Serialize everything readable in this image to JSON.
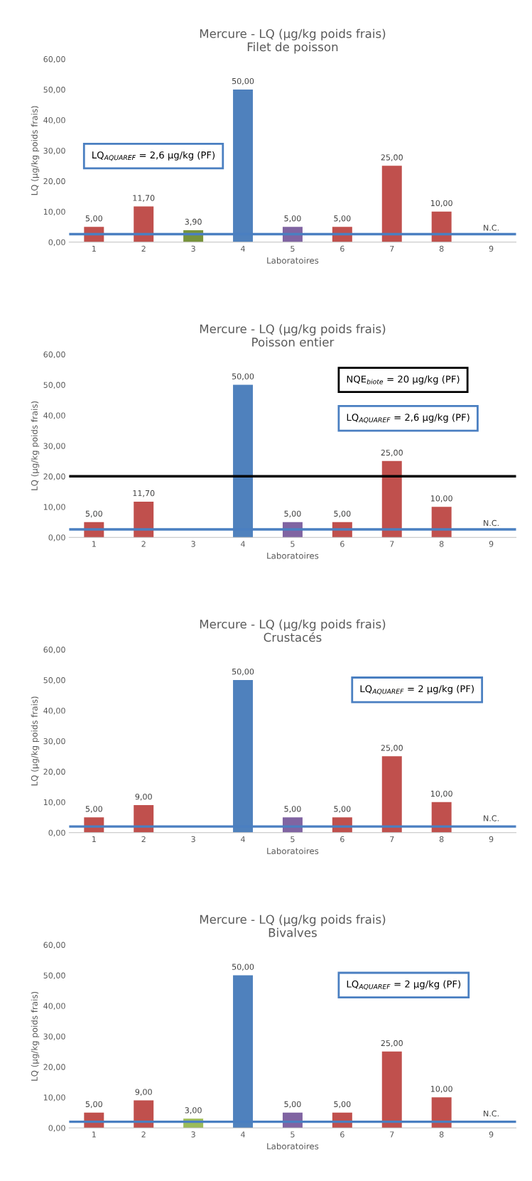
{
  "chart_data": [
    {
      "type": "bar",
      "title": "Mercure - LQ (µg/kg poids frais)",
      "subtitle": "Filet de poisson",
      "xlabel": "Laboratoires",
      "ylabel": "LQ (µg/kg poids frais)",
      "categories": [
        "1",
        "2",
        "3",
        "4",
        "5",
        "6",
        "7",
        "8",
        "9"
      ],
      "values": [
        5,
        11.7,
        3.9,
        50,
        5,
        5,
        25,
        10,
        null
      ],
      "colors": [
        "#c0504d",
        "#c0504d",
        "#77933c",
        "#4f81bd",
        "#8064a2",
        "#c0504d",
        "#c0504d",
        "#c0504d",
        "#c0504d"
      ],
      "value_labels": [
        "5,00",
        "11,70",
        "3,90",
        "50,00",
        "5,00",
        "5,00",
        "25,00",
        "10,00",
        "N.C."
      ],
      "ylim": [
        0,
        60
      ],
      "yticks": [
        {
          "value": 0,
          "label": "0,00"
        },
        {
          "value": 10,
          "label": "10,00"
        },
        {
          "value": 20,
          "label": "20,00"
        },
        {
          "value": 30,
          "label": "30,00"
        },
        {
          "value": 40,
          "label": "40,00"
        },
        {
          "value": 50,
          "label": "50,00"
        },
        {
          "value": 60,
          "label": "60,00"
        }
      ],
      "ref_lines": [
        {
          "axis": "y",
          "value": 2.6,
          "color": "#4a7fc1"
        }
      ],
      "annotations": [
        "LQ$_{AQUAREF}$ = 2,6 µg/kg (PF)"
      ],
      "grid": false,
      "legend": false
    },
    {
      "type": "bar",
      "title": "Mercure - LQ (µg/kg poids frais)",
      "subtitle": "Poisson entier",
      "xlabel": "Laboratoires",
      "ylabel": "LQ (µg/kg poids frais)",
      "categories": [
        "1",
        "2",
        "3",
        "4",
        "5",
        "6",
        "7",
        "8",
        "9"
      ],
      "values": [
        5,
        11.7,
        null,
        50,
        5,
        5,
        25,
        10,
        null
      ],
      "colors": [
        "#c0504d",
        "#c0504d",
        "#c0504d",
        "#4f81bd",
        "#8064a2",
        "#c0504d",
        "#c0504d",
        "#c0504d",
        "#c0504d"
      ],
      "value_labels": [
        "5,00",
        "11,70",
        null,
        "50,00",
        "5,00",
        "5,00",
        "25,00",
        "10,00",
        "N.C."
      ],
      "ylim": [
        0,
        60
      ],
      "yticks": [
        {
          "value": 0,
          "label": "0,00"
        },
        {
          "value": 10,
          "label": "10,00"
        },
        {
          "value": 20,
          "label": "20,00"
        },
        {
          "value": 30,
          "label": "30,00"
        },
        {
          "value": 40,
          "label": "40,00"
        },
        {
          "value": 50,
          "label": "50,00"
        },
        {
          "value": 60,
          "label": "60,00"
        }
      ],
      "ref_lines": [
        {
          "axis": "y",
          "value": 20,
          "color": "#000000"
        },
        {
          "axis": "y",
          "value": 2.6,
          "color": "#4a7fc1"
        }
      ],
      "annotations": [
        "NQE$_{biote}$ = 20 µg/kg (PF)",
        "LQ$_{AQUAREF}$ = 2,6 µg/kg (PF)"
      ],
      "grid": false,
      "legend": false
    },
    {
      "type": "bar",
      "title": "Mercure - LQ (µg/kg poids frais)",
      "subtitle": "Crustacés",
      "xlabel": "Laboratoires",
      "ylabel": "LQ (µg/kg poids frais)",
      "categories": [
        "1",
        "2",
        "3",
        "4",
        "5",
        "6",
        "7",
        "8",
        "9"
      ],
      "values": [
        5,
        9,
        null,
        50,
        5,
        5,
        25,
        10,
        null
      ],
      "colors": [
        "#c0504d",
        "#c0504d",
        "#c0504d",
        "#4f81bd",
        "#8064a2",
        "#c0504d",
        "#c0504d",
        "#c0504d",
        "#c0504d"
      ],
      "value_labels": [
        "5,00",
        "9,00",
        null,
        "50,00",
        "5,00",
        "5,00",
        "25,00",
        "10,00",
        "N.C."
      ],
      "ylim": [
        0,
        60
      ],
      "yticks": [
        {
          "value": 0,
          "label": "0,00"
        },
        {
          "value": 10,
          "label": "10,00"
        },
        {
          "value": 20,
          "label": "20,00"
        },
        {
          "value": 30,
          "label": "30,00"
        },
        {
          "value": 40,
          "label": "40,00"
        },
        {
          "value": 50,
          "label": "50,00"
        },
        {
          "value": 60,
          "label": "60,00"
        }
      ],
      "ref_lines": [
        {
          "axis": "y",
          "value": 2,
          "color": "#4a7fc1"
        }
      ],
      "annotations": [
        "LQ$_{AQUAREF}$ = 2 µg/kg (PF)"
      ],
      "grid": false,
      "legend": false
    },
    {
      "type": "bar",
      "title": "Mercure - LQ (µg/kg poids frais)",
      "subtitle": "Bivalves",
      "xlabel": "Laboratoires",
      "ylabel": "LQ (µg/kg poids frais)",
      "categories": [
        "1",
        "2",
        "3",
        "4",
        "5",
        "6",
        "7",
        "8",
        "9"
      ],
      "values": [
        5,
        9,
        3,
        50,
        5,
        5,
        25,
        10,
        null
      ],
      "colors": [
        "#c0504d",
        "#c0504d",
        "#9bbb59",
        "#4f81bd",
        "#8064a2",
        "#c0504d",
        "#c0504d",
        "#c0504d",
        "#c0504d"
      ],
      "value_labels": [
        "5,00",
        "9,00",
        "3,00",
        "50,00",
        "5,00",
        "5,00",
        "25,00",
        "10,00",
        "N.C."
      ],
      "ylim": [
        0,
        60
      ],
      "yticks": [
        {
          "value": 0,
          "label": "0,00"
        },
        {
          "value": 10,
          "label": "10,00"
        },
        {
          "value": 20,
          "label": "20,00"
        },
        {
          "value": 30,
          "label": "30,00"
        },
        {
          "value": 40,
          "label": "40,00"
        },
        {
          "value": 50,
          "label": "50,00"
        },
        {
          "value": 60,
          "label": "60,00"
        }
      ],
      "ref_lines": [
        {
          "axis": "y",
          "value": 2,
          "color": "#4a7fc1"
        }
      ],
      "annotations": [
        "LQ$_{AQUAREF}$ = 2 µg/kg (PF)"
      ],
      "grid": false,
      "legend": false
    }
  ]
}
